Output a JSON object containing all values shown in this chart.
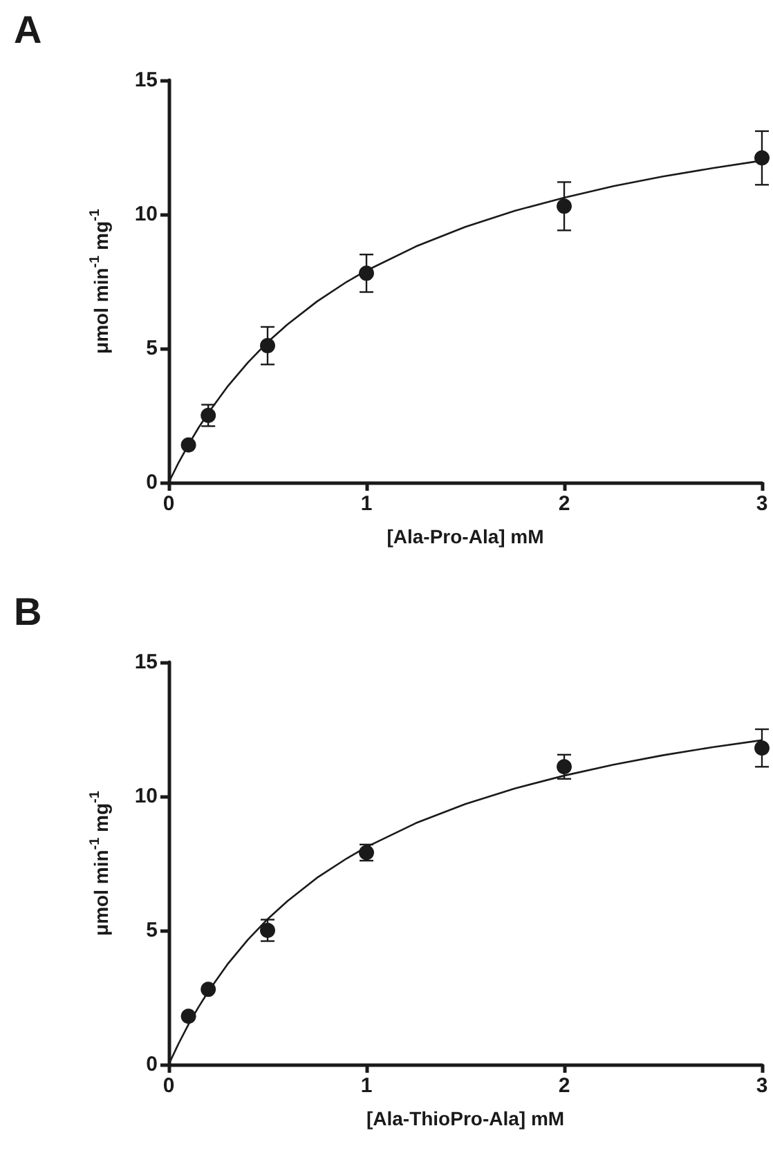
{
  "chart_data": [
    {
      "type": "scatter",
      "title": "A",
      "xlabel": "[Ala-Pro-Ala] mM",
      "ylabel": "μmol min$^{-1}$ mg$^{-1}$",
      "x": [
        0.1,
        0.2,
        0.5,
        1,
        2,
        3
      ],
      "xlim": [
        0,
        3
      ],
      "xticks": [
        0,
        1,
        2,
        3
      ],
      "ylim": [
        0,
        15
      ],
      "yticks": [
        0,
        5,
        10,
        15
      ],
      "grid": false,
      "series": [
        {
          "color": "#1a1a1a",
          "marker": "circle",
          "values": [
            1.4,
            2.5,
            5.1,
            7.8,
            10.3,
            12.1
          ],
          "errors": [
            null,
            0.4,
            0.7,
            0.7,
            0.9,
            1.0
          ]
        },
        {
          "type": "line",
          "color": "#1a1a1a",
          "marker": "none",
          "line_style": "solid",
          "x": [
            0,
            0.05,
            0.1,
            0.15,
            0.2,
            0.3,
            0.4,
            0.5,
            0.6,
            0.75,
            0.9,
            1,
            1.25,
            1.5,
            1.75,
            2,
            2.25,
            2.5,
            2.75,
            3
          ],
          "values": [
            0,
            0.74,
            1.41,
            2.03,
            2.59,
            3.6,
            4.47,
            5.23,
            5.89,
            6.75,
            7.48,
            7.9,
            8.8,
            9.53,
            10.13,
            10.62,
            11.05,
            11.41,
            11.72,
            12.0
          ]
        }
      ]
    },
    {
      "type": "scatter",
      "title": "B",
      "xlabel": "[Ala-ThioPro-Ala] mM",
      "ylabel": "μmol min$^{-1}$ mg$^{-1}$",
      "x": [
        0.1,
        0.2,
        0.5,
        1,
        2,
        3
      ],
      "xlim": [
        0,
        3
      ],
      "xticks": [
        0,
        1,
        2,
        3
      ],
      "ylim": [
        0,
        15
      ],
      "yticks": [
        0,
        5,
        10,
        15
      ],
      "grid": false,
      "series": [
        {
          "color": "#1a1a1a",
          "marker": "circle",
          "values": [
            1.8,
            2.8,
            5.0,
            7.9,
            11.1,
            11.8
          ],
          "errors": [
            null,
            null,
            0.4,
            0.3,
            0.45,
            0.7
          ]
        },
        {
          "type": "line",
          "color": "#1a1a1a",
          "marker": "none",
          "line_style": "solid",
          "x": [
            0,
            0.05,
            0.1,
            0.15,
            0.2,
            0.3,
            0.4,
            0.5,
            0.6,
            0.75,
            0.9,
            1,
            1.25,
            1.5,
            1.75,
            2,
            2.25,
            2.5,
            2.75,
            3
          ],
          "values": [
            0,
            0.78,
            1.49,
            2.13,
            2.72,
            3.76,
            4.65,
            5.42,
            6.09,
            6.96,
            7.68,
            8.11,
            9.0,
            9.71,
            10.29,
            10.77,
            11.18,
            11.53,
            11.83,
            12.09
          ]
        }
      ]
    }
  ]
}
